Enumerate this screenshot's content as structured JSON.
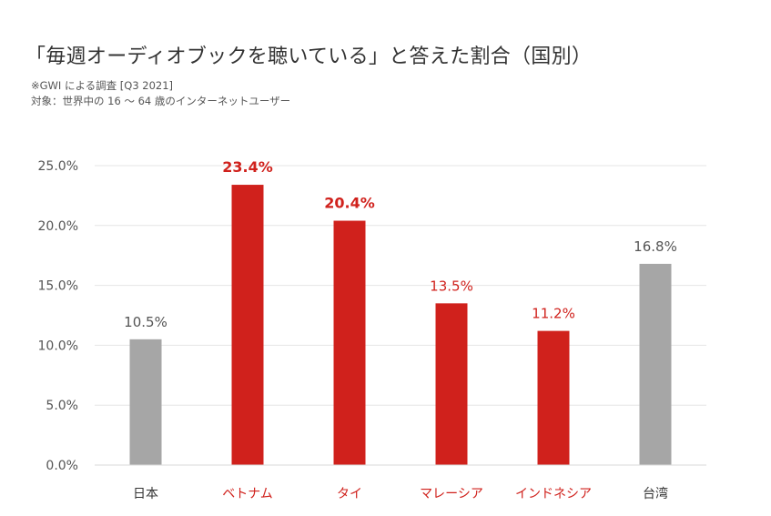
{
  "title": "「毎週オーディオブックを聴いている」と答えた割合（国別）",
  "source_note": "※GWI による調査 [Q3 2021]",
  "target_note": "対象：世界中の 16 〜 64 歳のインターネットユーザー",
  "chart_data": {
    "type": "bar",
    "categories": [
      "日本",
      "ベトナム",
      "タイ",
      "マレーシア",
      "インドネシア",
      "台湾"
    ],
    "values": [
      10.5,
      23.4,
      20.4,
      13.5,
      11.2,
      16.8
    ],
    "value_labels": [
      "10.5%",
      "23.4%",
      "20.4%",
      "13.5%",
      "11.2%",
      "16.8%"
    ],
    "bar_colors": [
      "#a6a6a6",
      "#d0211c",
      "#d0211c",
      "#d0211c",
      "#d0211c",
      "#a6a6a6"
    ],
    "label_colors": [
      "#555555",
      "#d0211c",
      "#d0211c",
      "#d0211c",
      "#d0211c",
      "#555555"
    ],
    "category_colors": [
      "#333333",
      "#d0211c",
      "#d0211c",
      "#d0211c",
      "#d0211c",
      "#333333"
    ],
    "bold_labels": [
      false,
      true,
      true,
      false,
      false,
      false
    ],
    "yticks": [
      0,
      5,
      10,
      15,
      20,
      25
    ],
    "ytick_labels": [
      "0.0%",
      "5.0%",
      "10.0%",
      "15.0%",
      "20.0%",
      "25.0%"
    ],
    "ylim": [
      0,
      25
    ],
    "grid": true,
    "gridline_color": "#e6e6e6"
  }
}
